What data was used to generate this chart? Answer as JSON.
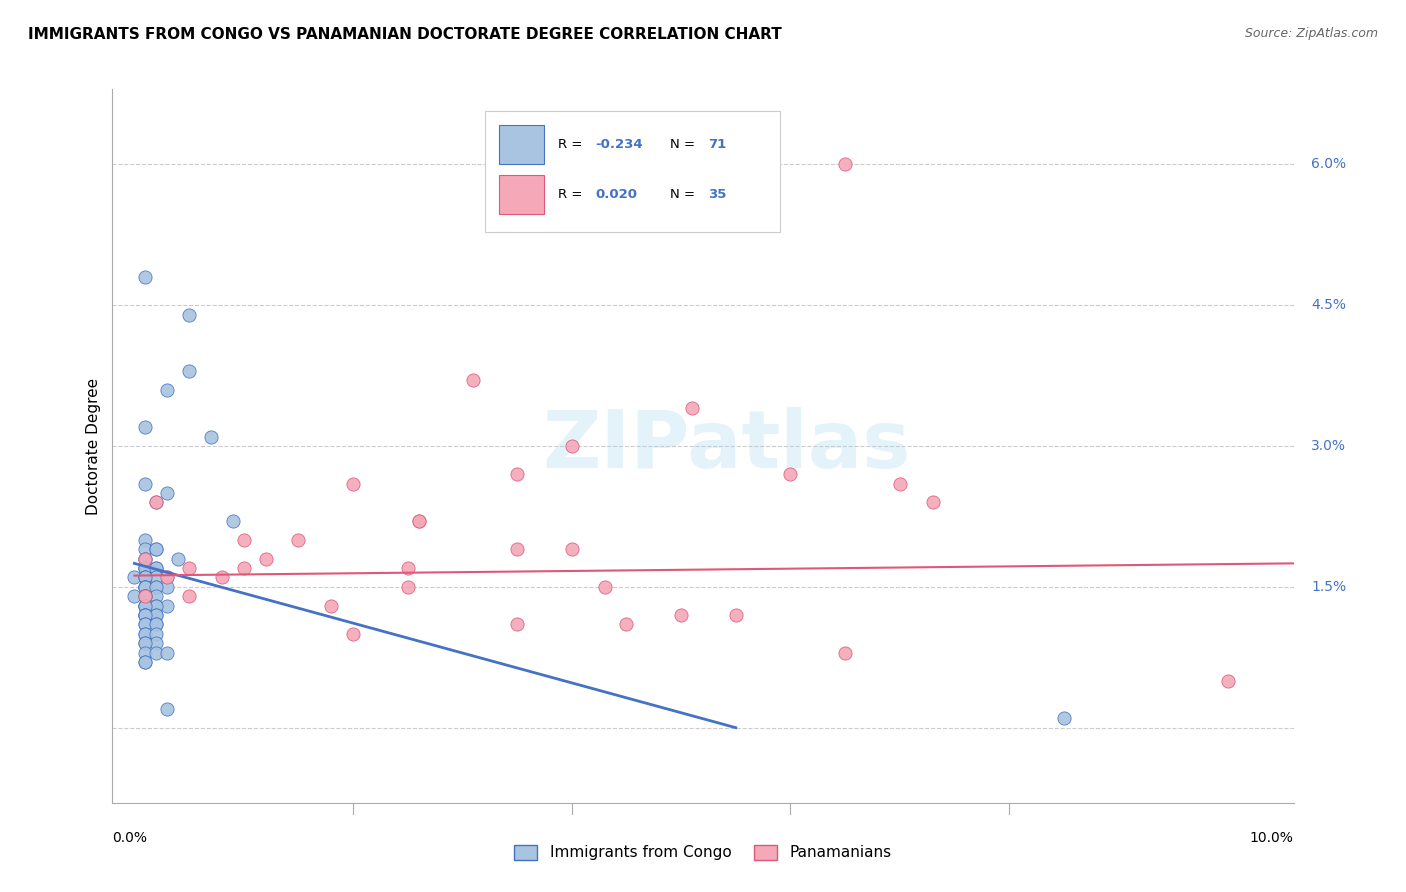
{
  "title": "IMMIGRANTS FROM CONGO VS PANAMANIAN DOCTORATE DEGREE CORRELATION CHART",
  "source": "Source: ZipAtlas.com",
  "xlabel_ticks": [
    "0.0%",
    "10.0%"
  ],
  "xlabel_vals": [
    0.0,
    0.1
  ],
  "ylabel_ticks": [
    "6.0%",
    "4.5%",
    "3.0%",
    "1.5%"
  ],
  "ylabel_vals": [
    0.06,
    0.045,
    0.03,
    0.015
  ],
  "ylabel_label": "Doctorate Degree",
  "xlim": [
    -0.002,
    0.106
  ],
  "ylim": [
    -0.008,
    0.068
  ],
  "watermark": "ZIPatlas",
  "legend_r_congo": "-0.234",
  "legend_n_congo": "71",
  "legend_r_panama": "0.020",
  "legend_n_panama": "35",
  "congo_color": "#a8c4e0",
  "panama_color": "#f4a8b8",
  "congo_line_color": "#4472c4",
  "panama_line_color": "#e05878",
  "grid_color": "#cccccc",
  "grid_vals": [
    0.0,
    0.015,
    0.03,
    0.045,
    0.06
  ],
  "congo_scatter": [
    [
      0.001,
      0.048
    ],
    [
      0.005,
      0.044
    ],
    [
      0.005,
      0.038
    ],
    [
      0.003,
      0.036
    ],
    [
      0.001,
      0.032
    ],
    [
      0.007,
      0.031
    ],
    [
      0.001,
      0.026
    ],
    [
      0.003,
      0.025
    ],
    [
      0.002,
      0.024
    ],
    [
      0.009,
      0.022
    ],
    [
      0.001,
      0.02
    ],
    [
      0.001,
      0.019
    ],
    [
      0.002,
      0.019
    ],
    [
      0.002,
      0.019
    ],
    [
      0.001,
      0.018
    ],
    [
      0.004,
      0.018
    ],
    [
      0.001,
      0.018
    ],
    [
      0.001,
      0.017
    ],
    [
      0.002,
      0.017
    ],
    [
      0.001,
      0.017
    ],
    [
      0.001,
      0.017
    ],
    [
      0.002,
      0.017
    ],
    [
      0.003,
      0.016
    ],
    [
      0.0,
      0.016
    ],
    [
      0.001,
      0.016
    ],
    [
      0.001,
      0.016
    ],
    [
      0.002,
      0.016
    ],
    [
      0.001,
      0.016
    ],
    [
      0.001,
      0.015
    ],
    [
      0.002,
      0.015
    ],
    [
      0.001,
      0.015
    ],
    [
      0.001,
      0.015
    ],
    [
      0.003,
      0.015
    ],
    [
      0.001,
      0.015
    ],
    [
      0.002,
      0.015
    ],
    [
      0.001,
      0.014
    ],
    [
      0.001,
      0.014
    ],
    [
      0.002,
      0.014
    ],
    [
      0.001,
      0.014
    ],
    [
      0.0,
      0.014
    ],
    [
      0.001,
      0.014
    ],
    [
      0.001,
      0.013
    ],
    [
      0.001,
      0.013
    ],
    [
      0.002,
      0.013
    ],
    [
      0.003,
      0.013
    ],
    [
      0.001,
      0.013
    ],
    [
      0.002,
      0.013
    ],
    [
      0.001,
      0.013
    ],
    [
      0.001,
      0.012
    ],
    [
      0.002,
      0.012
    ],
    [
      0.001,
      0.012
    ],
    [
      0.001,
      0.012
    ],
    [
      0.002,
      0.012
    ],
    [
      0.001,
      0.012
    ],
    [
      0.001,
      0.011
    ],
    [
      0.002,
      0.011
    ],
    [
      0.001,
      0.011
    ],
    [
      0.002,
      0.011
    ],
    [
      0.001,
      0.01
    ],
    [
      0.001,
      0.01
    ],
    [
      0.002,
      0.01
    ],
    [
      0.001,
      0.009
    ],
    [
      0.002,
      0.009
    ],
    [
      0.001,
      0.009
    ],
    [
      0.001,
      0.008
    ],
    [
      0.002,
      0.008
    ],
    [
      0.003,
      0.008
    ],
    [
      0.001,
      0.007
    ],
    [
      0.001,
      0.007
    ],
    [
      0.003,
      0.002
    ],
    [
      0.085,
      0.001
    ]
  ],
  "panama_scatter": [
    [
      0.065,
      0.06
    ],
    [
      0.031,
      0.037
    ],
    [
      0.051,
      0.034
    ],
    [
      0.04,
      0.03
    ],
    [
      0.035,
      0.027
    ],
    [
      0.06,
      0.027
    ],
    [
      0.02,
      0.026
    ],
    [
      0.07,
      0.026
    ],
    [
      0.002,
      0.024
    ],
    [
      0.073,
      0.024
    ],
    [
      0.026,
      0.022
    ],
    [
      0.026,
      0.022
    ],
    [
      0.01,
      0.02
    ],
    [
      0.015,
      0.02
    ],
    [
      0.035,
      0.019
    ],
    [
      0.04,
      0.019
    ],
    [
      0.001,
      0.018
    ],
    [
      0.012,
      0.018
    ],
    [
      0.005,
      0.017
    ],
    [
      0.01,
      0.017
    ],
    [
      0.025,
      0.017
    ],
    [
      0.003,
      0.016
    ],
    [
      0.008,
      0.016
    ],
    [
      0.025,
      0.015
    ],
    [
      0.043,
      0.015
    ],
    [
      0.001,
      0.014
    ],
    [
      0.005,
      0.014
    ],
    [
      0.018,
      0.013
    ],
    [
      0.05,
      0.012
    ],
    [
      0.055,
      0.012
    ],
    [
      0.035,
      0.011
    ],
    [
      0.045,
      0.011
    ],
    [
      0.02,
      0.01
    ],
    [
      0.065,
      0.008
    ],
    [
      0.1,
      0.005
    ]
  ],
  "congo_trendline": [
    [
      0.0,
      0.0175
    ],
    [
      0.055,
      0.0
    ]
  ],
  "panama_trendline": [
    [
      0.0,
      0.0162
    ],
    [
      0.106,
      0.0175
    ]
  ]
}
